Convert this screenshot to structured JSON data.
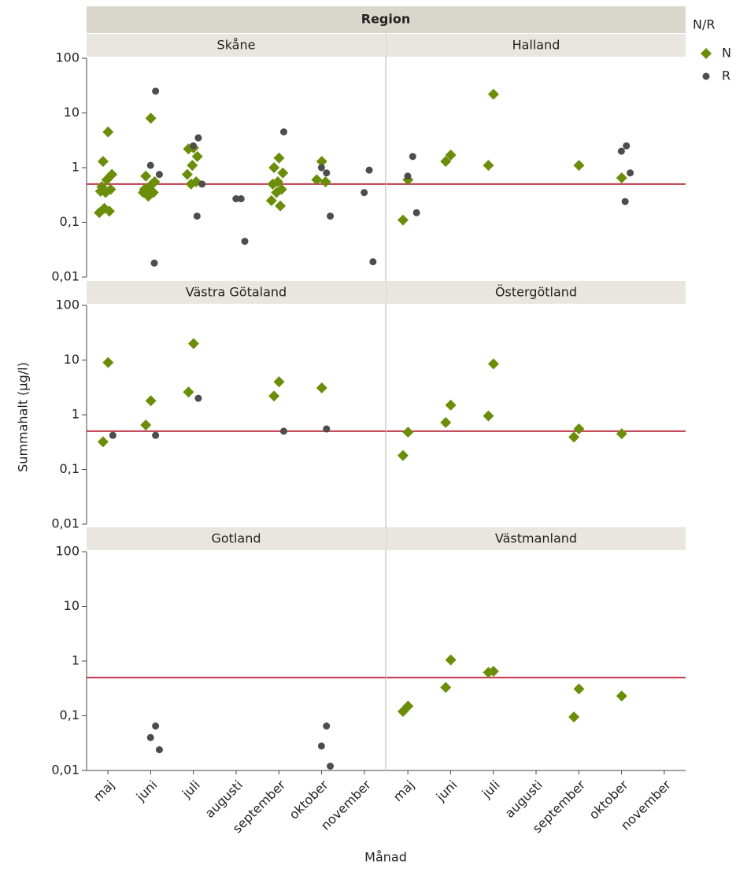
{
  "chart_data": {
    "type": "scatter",
    "title": "Region",
    "x_label": "Månad",
    "y_label": "Summahalt (µg/l)",
    "legend_title": "N/R",
    "legend": "right",
    "log_y": true,
    "categories": [
      "maj",
      "juni",
      "juli",
      "augusti",
      "september",
      "oktober",
      "november"
    ],
    "ylim": [
      0.01,
      100
    ],
    "yticks": [
      {
        "value": 0.01,
        "label": "0,01"
      },
      {
        "value": 0.1,
        "label": "0,1"
      },
      1,
      10,
      100
    ],
    "hline": {
      "value": 0.5,
      "color": "#c0394b"
    },
    "series": [
      {
        "name": "N",
        "color": "#6b8e0a",
        "marker": "diamond"
      },
      {
        "name": "R",
        "color": "#4d4d4d",
        "marker": "circle"
      }
    ],
    "panels": [
      {
        "title": "Skåne",
        "series": [
          {
            "x": [
              "maj",
              "maj",
              "maj",
              "maj",
              "maj",
              "maj",
              "maj",
              "maj",
              "maj",
              "maj",
              "maj",
              "juni",
              "juni",
              "juni",
              "juni",
              "juni",
              "juni",
              "juni",
              "juni",
              "juni",
              "juli",
              "juli",
              "juli",
              "juli",
              "juli",
              "juli",
              "juli",
              "september",
              "september",
              "september",
              "september",
              "september",
              "september",
              "september",
              "september",
              "september",
              "oktober",
              "oktober",
              "oktober"
            ],
            "values": [
              4.5,
              1.3,
              0.75,
              0.6,
              0.45,
              0.4,
              0.35,
              0.37,
              0.16,
              0.18,
              0.15,
              8,
              0.7,
              0.55,
              0.45,
              0.4,
              0.35,
              0.3,
              0.35,
              0.5,
              2.3,
              2.2,
              1.6,
              1.1,
              0.75,
              0.55,
              0.5,
              1.5,
              1.0,
              0.8,
              0.55,
              0.5,
              0.4,
              0.35,
              0.25,
              0.2,
              1.3,
              0.6,
              0.55
            ]
          },
          {
            "x": [
              "juni",
              "juni",
              "juni",
              "juni",
              "juli",
              "juli",
              "juli",
              "juli",
              "augusti",
              "augusti",
              "augusti",
              "september",
              "oktober",
              "oktober",
              "oktober",
              "november",
              "november",
              "november"
            ],
            "values": [
              25,
              1.1,
              0.75,
              0.018,
              3.5,
              2.5,
              0.5,
              0.13,
              0.27,
              0.27,
              0.045,
              4.5,
              0.8,
              1.0,
              0.13,
              0.9,
              0.35,
              0.019
            ]
          }
        ]
      },
      {
        "title": "Halland",
        "series": [
          {
            "x": [
              "maj",
              "maj",
              "juni",
              "juni",
              "juli",
              "juli",
              "september",
              "oktober"
            ],
            "values": [
              0.6,
              0.11,
              1.7,
              1.3,
              22,
              1.1,
              1.1,
              0.65
            ]
          },
          {
            "x": [
              "maj",
              "maj",
              "maj",
              "oktober",
              "oktober",
              "oktober",
              "oktober"
            ],
            "values": [
              1.6,
              0.7,
              0.15,
              2.5,
              2.0,
              0.8,
              0.24
            ]
          }
        ]
      },
      {
        "title": "Västra Götaland",
        "series": [
          {
            "x": [
              "maj",
              "maj",
              "juni",
              "juni",
              "juli",
              "juli",
              "september",
              "september",
              "oktober"
            ],
            "values": [
              9,
              0.32,
              1.8,
              0.65,
              20,
              2.6,
              4,
              2.2,
              3.1
            ]
          },
          {
            "x": [
              "maj",
              "juni",
              "juli",
              "september",
              "oktober"
            ],
            "values": [
              0.42,
              0.42,
              2.0,
              0.5,
              0.55
            ]
          }
        ]
      },
      {
        "title": "Östergötland",
        "series": [
          {
            "x": [
              "maj",
              "maj",
              "juni",
              "juni",
              "juli",
              "juli",
              "september",
              "september",
              "oktober"
            ],
            "values": [
              0.48,
              0.18,
              1.5,
              0.72,
              8.5,
              0.95,
              0.55,
              0.39,
              0.45
            ]
          },
          {
            "x": [],
            "values": []
          }
        ]
      },
      {
        "title": "Gotland",
        "series": [
          {
            "x": [],
            "values": []
          },
          {
            "x": [
              "juni",
              "juni",
              "juni",
              "oktober",
              "oktober",
              "oktober"
            ],
            "values": [
              0.065,
              0.04,
              0.024,
              0.065,
              0.028,
              0.012
            ]
          }
        ]
      },
      {
        "title": "Västmanland",
        "series": [
          {
            "x": [
              "maj",
              "maj",
              "juni",
              "juni",
              "juli",
              "juli",
              "september",
              "september",
              "oktober"
            ],
            "values": [
              0.15,
              0.12,
              1.05,
              0.33,
              0.65,
              0.62,
              0.31,
              0.095,
              0.23
            ]
          },
          {
            "x": [],
            "values": []
          }
        ]
      }
    ]
  }
}
